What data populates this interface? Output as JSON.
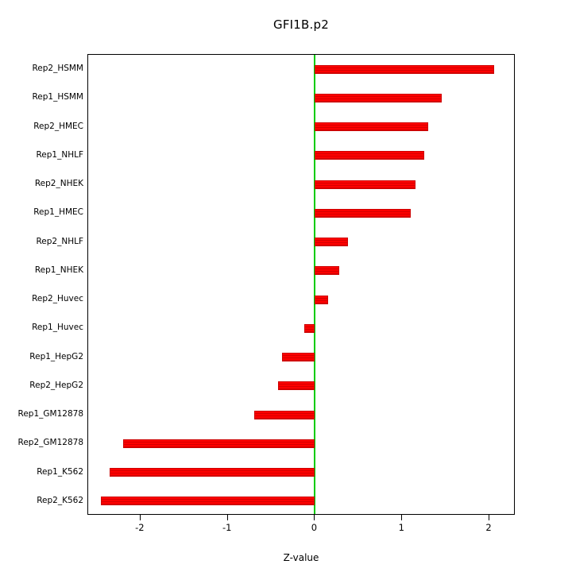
{
  "chart_data": {
    "type": "bar",
    "orientation": "horizontal",
    "title": "GFI1B.p2",
    "xlabel": "Z-value",
    "categories": [
      "Rep2_HSMM",
      "Rep1_HSMM",
      "Rep2_HMEC",
      "Rep1_NHLF",
      "Rep2_NHEK",
      "Rep1_HMEC",
      "Rep2_NHLF",
      "Rep1_NHEK",
      "Rep2_Huvec",
      "Rep1_Huvec",
      "Rep1_HepG2",
      "Rep2_HepG2",
      "Rep1_GM12878",
      "Rep2_GM12878",
      "Rep1_K562",
      "Rep2_K562"
    ],
    "values": [
      2.05,
      1.45,
      1.3,
      1.25,
      1.15,
      1.1,
      0.38,
      0.28,
      0.15,
      -0.12,
      -0.38,
      -0.42,
      -0.7,
      -2.2,
      -2.35,
      -2.45
    ],
    "xlim": [
      -2.6,
      2.3
    ],
    "xticks": [
      -2,
      -1,
      0,
      1,
      2
    ],
    "xtick_labels": [
      "-2",
      "-1",
      "0",
      "1",
      "2"
    ],
    "bar_color": "#ff0000",
    "bar_border_color": "#cc0000",
    "zero_line_color": "#00cc00",
    "grid": false
  }
}
